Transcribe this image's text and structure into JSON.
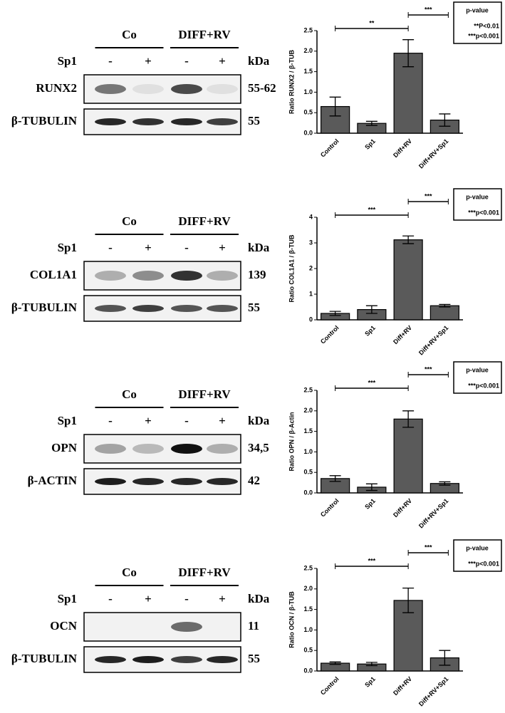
{
  "chart_data": [
    {
      "type": "bar",
      "ylabel": "Ratio RUNX2 / β-TUB",
      "categories": [
        "Control",
        "Sp1",
        "Diff+RV",
        "Diff+RV+Sp1"
      ],
      "values": [
        0.65,
        0.24,
        1.95,
        0.32
      ],
      "errors": [
        0.23,
        0.05,
        0.33,
        0.15
      ],
      "color": "#5a5a5a",
      "ylim": [
        0,
        2.5
      ],
      "yticks": [
        {
          "value": 0,
          "label": "0.0"
        },
        0.5,
        {
          "value": 1,
          "label": "1.0"
        },
        1.5,
        {
          "value": 2,
          "label": "2.0"
        },
        2.5
      ],
      "significance": [
        {
          "label": "**"
        },
        {
          "label": "***"
        }
      ],
      "legend_title": "p-value",
      "legend_lines": [
        "**P<0.01",
        "***p<0.001"
      ]
    },
    {
      "type": "bar",
      "ylabel": "Ratio COL1A1 / β-TUB",
      "categories": [
        "Control",
        "Sp1",
        "Diff+RV",
        "Diff+RV+Sp1"
      ],
      "values": [
        0.25,
        0.4,
        3.12,
        0.55
      ],
      "errors": [
        0.08,
        0.15,
        0.15,
        0.05
      ],
      "color": "#5a5a5a",
      "ylim": [
        0,
        4
      ],
      "yticks": [
        0,
        1,
        2,
        3,
        4
      ],
      "significance": [
        {
          "label": "***"
        },
        {
          "label": "***"
        }
      ],
      "legend_title": "p-value",
      "legend_lines": [
        "***p<0.001"
      ]
    },
    {
      "type": "bar",
      "ylabel": "Ratio OPN / β-Actin",
      "categories": [
        "Control",
        "Sp1",
        "Diff+RV",
        "Diff+RV+Sp1"
      ],
      "values": [
        0.35,
        0.14,
        1.8,
        0.23
      ],
      "errors": [
        0.07,
        0.08,
        0.2,
        0.04
      ],
      "color": "#5a5a5a",
      "ylim": [
        0,
        2.5
      ],
      "yticks": [
        {
          "value": 0,
          "label": "0.0"
        },
        0.5,
        {
          "value": 1,
          "label": "1.0"
        },
        1.5,
        {
          "value": 2,
          "label": "2.0"
        },
        2.5
      ],
      "significance": [
        {
          "label": "***"
        },
        {
          "label": "***"
        }
      ],
      "legend_title": "p-value",
      "legend_lines": [
        "***p<0.001"
      ]
    },
    {
      "type": "bar",
      "ylabel": "Ratio OCN / β-TUB",
      "categories": [
        "Control",
        "Sp1",
        "Diff+RV",
        "Diff+RV+Sp1"
      ],
      "values": [
        0.19,
        0.17,
        1.72,
        0.32
      ],
      "errors": [
        0.03,
        0.04,
        0.3,
        0.18
      ],
      "color": "#5a5a5a",
      "ylim": [
        0,
        2.5
      ],
      "yticks": [
        {
          "value": 0,
          "label": "0.0"
        },
        0.5,
        {
          "value": 1,
          "label": "1.0"
        },
        1.5,
        {
          "value": 2,
          "label": "2.0"
        },
        2.5
      ],
      "significance": [
        {
          "label": "***"
        },
        {
          "label": "***"
        }
      ],
      "legend_title": "p-value",
      "legend_lines": [
        "***p<0.001"
      ]
    }
  ],
  "blots": [
    {
      "groups": [
        "Co",
        "DIFF+RV"
      ],
      "treatment": "Sp1",
      "signs": [
        "-",
        "+",
        "-",
        "+"
      ],
      "unit": "kDa",
      "bands": [
        {
          "label": "RUNX2",
          "kda": "55-62"
        },
        {
          "label": "β-TUBULIN",
          "kda": "55"
        }
      ]
    },
    {
      "groups": [
        "Co",
        "DIFF+RV"
      ],
      "treatment": "Sp1",
      "signs": [
        "-",
        "+",
        "-",
        "+"
      ],
      "unit": "kDa",
      "bands": [
        {
          "label": "COL1A1",
          "kda": "139"
        },
        {
          "label": "β-TUBULIN",
          "kda": "55"
        }
      ]
    },
    {
      "groups": [
        "Co",
        "DIFF+RV"
      ],
      "treatment": "Sp1",
      "signs": [
        "-",
        "+",
        "-",
        "+"
      ],
      "unit": "kDa",
      "bands": [
        {
          "label": "OPN",
          "kda": "34,5"
        },
        {
          "label": "β-ACTIN",
          "kda": "42"
        }
      ]
    },
    {
      "groups": [
        "Co",
        "DIFF+RV"
      ],
      "treatment": "Sp1",
      "signs": [
        "-",
        "+",
        "-",
        "+"
      ],
      "unit": "kDa",
      "bands": [
        {
          "label": "OCN",
          "kda": "11"
        },
        {
          "label": "β-TUBULIN",
          "kda": "55"
        }
      ]
    }
  ]
}
